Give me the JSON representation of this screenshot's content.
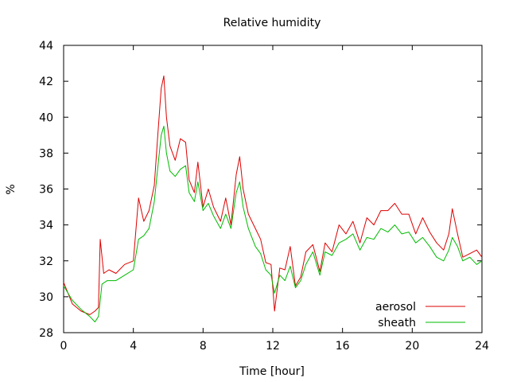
{
  "chart_data": {
    "type": "line",
    "title": "Relative humidity",
    "xlabel": "Time [hour]",
    "ylabel": "%",
    "xlim": [
      0,
      24
    ],
    "ylim": [
      28,
      44
    ],
    "xticks": [
      0,
      4,
      8,
      12,
      16,
      20,
      24
    ],
    "yticks": [
      28,
      30,
      32,
      34,
      36,
      38,
      40,
      42,
      44
    ],
    "grid": false,
    "legend_position": "bottom-right",
    "series": [
      {
        "name": "aerosol",
        "color": "#dd0000",
        "x": [
          0,
          0.5,
          1,
          1.5,
          1.8,
          2.0,
          2.1,
          2.3,
          2.6,
          3.0,
          3.5,
          4.0,
          4.3,
          4.6,
          4.9,
          5.2,
          5.4,
          5.6,
          5.75,
          5.9,
          6.1,
          6.4,
          6.7,
          7.0,
          7.2,
          7.5,
          7.7,
          8.0,
          8.3,
          8.6,
          9.0,
          9.3,
          9.6,
          9.9,
          10.1,
          10.3,
          10.6,
          11.0,
          11.3,
          11.6,
          11.9,
          12.1,
          12.4,
          12.7,
          13.0,
          13.3,
          13.6,
          13.9,
          14.3,
          14.7,
          15.0,
          15.4,
          15.8,
          16.2,
          16.6,
          17.0,
          17.4,
          17.8,
          18.2,
          18.6,
          19.0,
          19.4,
          19.8,
          20.2,
          20.6,
          21.0,
          21.4,
          21.8,
          22.1,
          22.3,
          22.6,
          22.9,
          23.3,
          23.7,
          24.0
        ],
        "values": [
          30.8,
          29.6,
          29.2,
          29.0,
          29.2,
          29.4,
          33.2,
          31.3,
          31.5,
          31.3,
          31.8,
          32.0,
          35.5,
          34.2,
          34.8,
          36.2,
          39.0,
          41.6,
          42.3,
          40.0,
          38.4,
          37.6,
          38.8,
          38.6,
          36.5,
          35.8,
          37.5,
          35.0,
          36.0,
          35.0,
          34.2,
          35.5,
          34.0,
          36.8,
          37.8,
          36.0,
          34.6,
          33.8,
          33.2,
          31.9,
          31.8,
          29.2,
          31.6,
          31.5,
          32.8,
          30.6,
          31.1,
          32.5,
          32.9,
          31.4,
          33.0,
          32.5,
          34.0,
          33.5,
          34.2,
          33.0,
          34.4,
          34.0,
          34.8,
          34.8,
          35.2,
          34.6,
          34.6,
          33.5,
          34.4,
          33.6,
          33.0,
          32.6,
          33.5,
          34.9,
          33.5,
          32.2,
          32.4,
          32.6,
          32.2
        ]
      },
      {
        "name": "sheath",
        "color": "#00bb00",
        "x": [
          0,
          0.5,
          1,
          1.5,
          1.8,
          2.0,
          2.2,
          2.5,
          3.0,
          3.5,
          4.0,
          4.3,
          4.6,
          4.9,
          5.2,
          5.4,
          5.6,
          5.75,
          5.9,
          6.1,
          6.4,
          6.7,
          7.0,
          7.2,
          7.5,
          7.7,
          8.0,
          8.3,
          8.6,
          9.0,
          9.3,
          9.6,
          9.9,
          10.1,
          10.3,
          10.6,
          11.0,
          11.3,
          11.6,
          11.9,
          12.1,
          12.4,
          12.7,
          13.0,
          13.3,
          13.6,
          13.9,
          14.3,
          14.7,
          15.0,
          15.4,
          15.8,
          16.2,
          16.6,
          17.0,
          17.4,
          17.8,
          18.2,
          18.6,
          19.0,
          19.4,
          19.8,
          20.2,
          20.6,
          21.0,
          21.4,
          21.8,
          22.1,
          22.3,
          22.6,
          22.9,
          23.3,
          23.7,
          24.0
        ],
        "values": [
          30.6,
          29.8,
          29.3,
          28.9,
          28.6,
          28.9,
          30.7,
          30.9,
          30.9,
          31.2,
          31.5,
          33.2,
          33.4,
          33.8,
          35.3,
          37.2,
          39.0,
          39.5,
          38.0,
          37.0,
          36.7,
          37.1,
          37.3,
          35.8,
          35.3,
          36.4,
          34.8,
          35.2,
          34.5,
          33.8,
          34.6,
          33.8,
          35.8,
          36.4,
          35.0,
          33.8,
          32.8,
          32.4,
          31.5,
          31.2,
          30.2,
          31.2,
          30.9,
          31.7,
          30.5,
          30.9,
          31.8,
          32.5,
          31.2,
          32.5,
          32.3,
          33.0,
          33.2,
          33.5,
          32.6,
          33.3,
          33.2,
          33.8,
          33.6,
          34.0,
          33.5,
          33.6,
          33.0,
          33.3,
          32.8,
          32.2,
          32.0,
          32.6,
          33.3,
          32.8,
          32.0,
          32.2,
          31.8,
          32.0
        ]
      }
    ]
  }
}
